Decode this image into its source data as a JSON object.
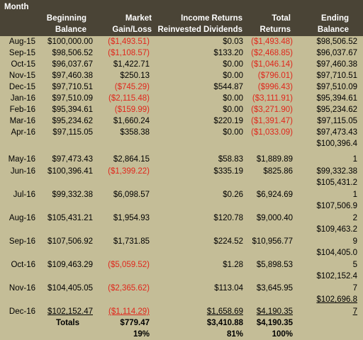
{
  "headers": {
    "month": "Month",
    "beginning": [
      "Beginning",
      "Balance"
    ],
    "market": [
      "Market",
      "Gain/Loss"
    ],
    "income": [
      "Income Returns",
      "Reinvested Dividends"
    ],
    "total": [
      "Total",
      "Returns"
    ],
    "ending": [
      "Ending",
      "Balance"
    ]
  },
  "rows": [
    {
      "month": "Aug-15",
      "beginning": "$100,000.00",
      "market": "($1,493.51)",
      "income": "$0.03",
      "total": "($1,493.48)",
      "ending": [
        "$98,506.52"
      ]
    },
    {
      "month": "Sep-15",
      "beginning": "$98,506.52",
      "market": "($1,108.57)",
      "income": "$133.20",
      "total": "($2,468.85)",
      "ending": [
        "$96,037.67"
      ]
    },
    {
      "month": "Oct-15",
      "beginning": "$96,037.67",
      "market": "$1,422.71",
      "income": "$0.00",
      "total": "($1,046.14)",
      "ending": [
        "$97,460.38"
      ]
    },
    {
      "month": "Nov-15",
      "beginning": "$97,460.38",
      "market": "$250.13",
      "income": "$0.00",
      "total": "($796.01)",
      "ending": [
        "$97,710.51"
      ]
    },
    {
      "month": "Dec-15",
      "beginning": "$97,710.51",
      "market": "($745.29)",
      "income": "$544.87",
      "total": "($996.43)",
      "ending": [
        "$97,510.09"
      ]
    },
    {
      "month": "Jan-16",
      "beginning": "$97,510.09",
      "market": "($2,115.48)",
      "income": "$0.00",
      "total": "($3,111.91)",
      "ending": [
        "$95,394.61"
      ]
    },
    {
      "month": "Feb-16",
      "beginning": "$95,394.61",
      "market": "($159.99)",
      "income": "$0.00",
      "total": "($3,271.90)",
      "ending": [
        "$95,234.62"
      ]
    },
    {
      "month": "Mar-16",
      "beginning": "$95,234.62",
      "market": "$1,660.24",
      "income": "$220.19",
      "total": "($1,391.47)",
      "ending": [
        "$97,115.05"
      ]
    },
    {
      "month": "Apr-16",
      "beginning": "$97,115.05",
      "market": "$358.38",
      "income": "$0.00",
      "total": "($1,033.09)",
      "ending": [
        "$97,473.43",
        "$100,396.4"
      ]
    },
    {
      "month": "May-16",
      "beginning": "$97,473.43",
      "market": "$2,864.15",
      "income": "$58.83",
      "total": "$1,889.89",
      "ending": [
        "1"
      ]
    },
    {
      "month": "Jun-16",
      "beginning": "$100,396.41",
      "market": "($1,399.22)",
      "income": "$335.19",
      "total": "$825.86",
      "ending": [
        "$99,332.38",
        "$105,431.2"
      ]
    },
    {
      "month": "Jul-16",
      "beginning": "$99,332.38",
      "market": "$6,098.57",
      "income": "$0.26",
      "total": "$6,924.69",
      "ending": [
        "1",
        "$107,506.9"
      ]
    },
    {
      "month": "Aug-16",
      "beginning": "$105,431.21",
      "market": "$1,954.93",
      "income": "$120.78",
      "total": "$9,000.40",
      "ending": [
        "2",
        "$109,463.2"
      ]
    },
    {
      "month": "Sep-16",
      "beginning": "$107,506.92",
      "market": "$1,731.85",
      "income": "$224.52",
      "total": "$10,956.77",
      "ending": [
        "9",
        "$104,405.0"
      ]
    },
    {
      "month": "Oct-16",
      "beginning": "$109,463.29",
      "market": "($5,059.52)",
      "income": "$1.28",
      "total": "$5,898.53",
      "ending": [
        "5",
        "$102,152.4"
      ]
    },
    {
      "month": "Nov-16",
      "beginning": "$104,405.05",
      "market": "($2,365.62)",
      "income": "$113.04",
      "total": "$3,645.95",
      "ending": [
        "7",
        "$102,696.8"
      ]
    },
    {
      "month": "Dec-16",
      "beginning": "$102,152.47",
      "market": "($1,114.29)",
      "income": "$1,658.69",
      "total": "$4,190.35",
      "ending": [
        "7"
      ]
    }
  ],
  "totals": {
    "label": "Totals",
    "market": "$779.47",
    "income": "$3,410.88",
    "total": "$4,190.35"
  },
  "percents": {
    "market": "19%",
    "income": "81%",
    "total": "100%"
  },
  "colors": {
    "header_bg": "#4a4436",
    "body_bg": "#c4bd97",
    "negative": "#e0271c"
  }
}
